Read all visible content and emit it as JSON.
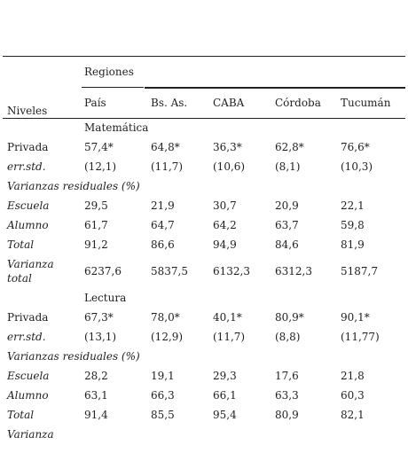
{
  "header": {
    "regiones": "Regiones",
    "niveles": "Niveles",
    "columns": [
      "País",
      "Bs. As.",
      "CABA",
      "Córdoba",
      "Tucumán"
    ]
  },
  "sections": [
    {
      "title": "Matemática",
      "rows": [
        {
          "label": "Privada",
          "values": [
            "57,4*",
            "64,8*",
            "36,3*",
            "62,8*",
            "76,6*"
          ]
        },
        {
          "label": "err.std.",
          "values": [
            "(12,1)",
            "(11,7)",
            "(10,6)",
            "(8,1)",
            "(10,3)"
          ]
        },
        {
          "label": "Varianzas residuales (%)",
          "values": []
        },
        {
          "label": "Escuela",
          "values": [
            "29,5",
            "21,9",
            "30,7",
            "20,9",
            "22,1"
          ]
        },
        {
          "label": "Alumno",
          "values": [
            "61,7",
            "64,7",
            "64,2",
            "63,7",
            "59,8"
          ]
        },
        {
          "label": "Total",
          "values": [
            "91,2",
            "86,6",
            "94,9",
            "84,6",
            "81,9"
          ]
        },
        {
          "label": "Varianza total",
          "values": [
            "6237,6",
            "5837,5",
            "6132,3",
            "6312,3",
            "5187,7"
          ]
        }
      ]
    },
    {
      "title": "Lectura",
      "rows": [
        {
          "label": "Privada",
          "values": [
            "67,3*",
            "78,0*",
            "40,1*",
            "80,9*",
            "90,1*"
          ]
        },
        {
          "label": "err.std.",
          "values": [
            "(13,1)",
            "(12,9)",
            "(11,7)",
            "(8,8)",
            "(11,77)"
          ]
        },
        {
          "label": "Varianzas residuales (%)",
          "values": []
        },
        {
          "label": "Escuela",
          "values": [
            "28,2",
            "19,1",
            "29,3",
            "17,6",
            "21,8"
          ]
        },
        {
          "label": "Alumno",
          "values": [
            "63,1",
            "66,3",
            "66,1",
            "63,3",
            "60,3"
          ]
        },
        {
          "label": "Total",
          "values": [
            "91,4",
            "85,5",
            "95,4",
            "80,9",
            "82,1"
          ]
        },
        {
          "label": "Varianza",
          "values": []
        }
      ]
    }
  ]
}
